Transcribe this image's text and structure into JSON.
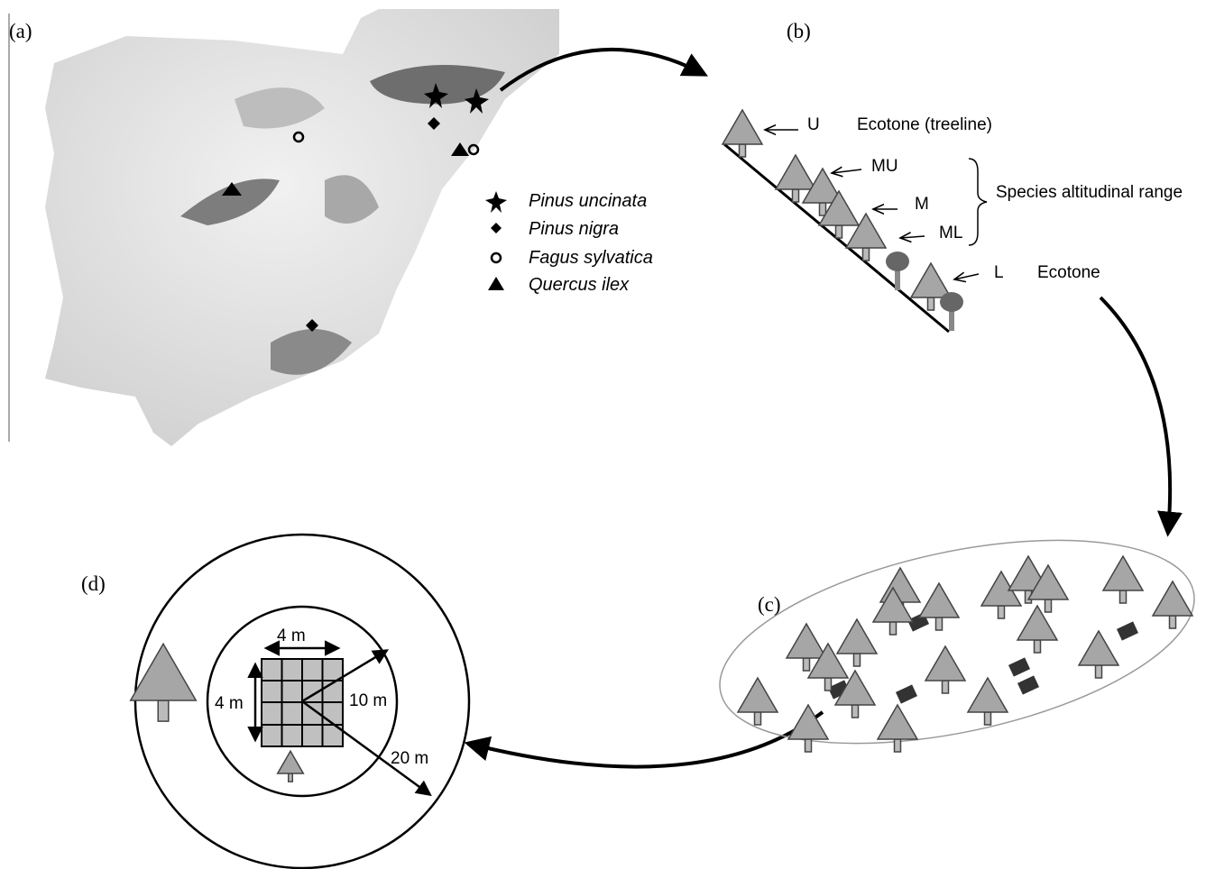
{
  "panels": [
    "(a)",
    "(b)",
    "(c)",
    "(d)"
  ],
  "map": {
    "legend": [
      "Pinus uncinata",
      "Pinus nigra",
      "Fagus sylvatica",
      "Quercus ilex"
    ]
  },
  "slope": {
    "levels": [
      {
        "code": "U",
        "note": "Ecotone (treeline)"
      },
      {
        "code": "MU"
      },
      {
        "code": "M"
      },
      {
        "code": "ML"
      },
      {
        "code": "L",
        "note": "Ecotone"
      }
    ],
    "range_label": "Species altitudinal range"
  },
  "plot": {
    "side_top": "4 m",
    "side_left": "4 m",
    "radius_inner": "10 m",
    "radius_outer": "20 m"
  }
}
